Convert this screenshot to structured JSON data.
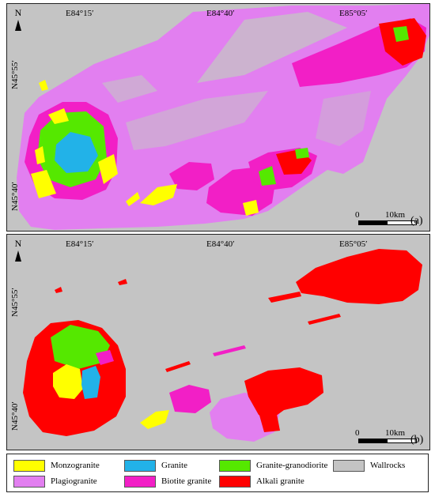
{
  "coords": {
    "lon": [
      "E84°15′",
      "E84°40′",
      "E85°05′"
    ],
    "lat_top": "N45°55′",
    "lat_bottom": "N45°40′"
  },
  "north_label": "N",
  "scale": {
    "start": "0",
    "end": "10km"
  },
  "panels": {
    "a": "(a)",
    "b": "(b)"
  },
  "legend": [
    {
      "label": "Monzogranite",
      "color": "#ffff00"
    },
    {
      "label": "Granite",
      "color": "#22b2e8"
    },
    {
      "label": "Granite-granodiorite",
      "color": "#55e800"
    },
    {
      "label": "Wallrocks",
      "color": "#c4c4c4"
    },
    {
      "label": "Plagiogranite",
      "color": "#e27ff0"
    },
    {
      "label": "Biotite granite",
      "color": "#f21fc6"
    },
    {
      "label": "Alkali granite",
      "color": "#ff0000"
    }
  ]
}
